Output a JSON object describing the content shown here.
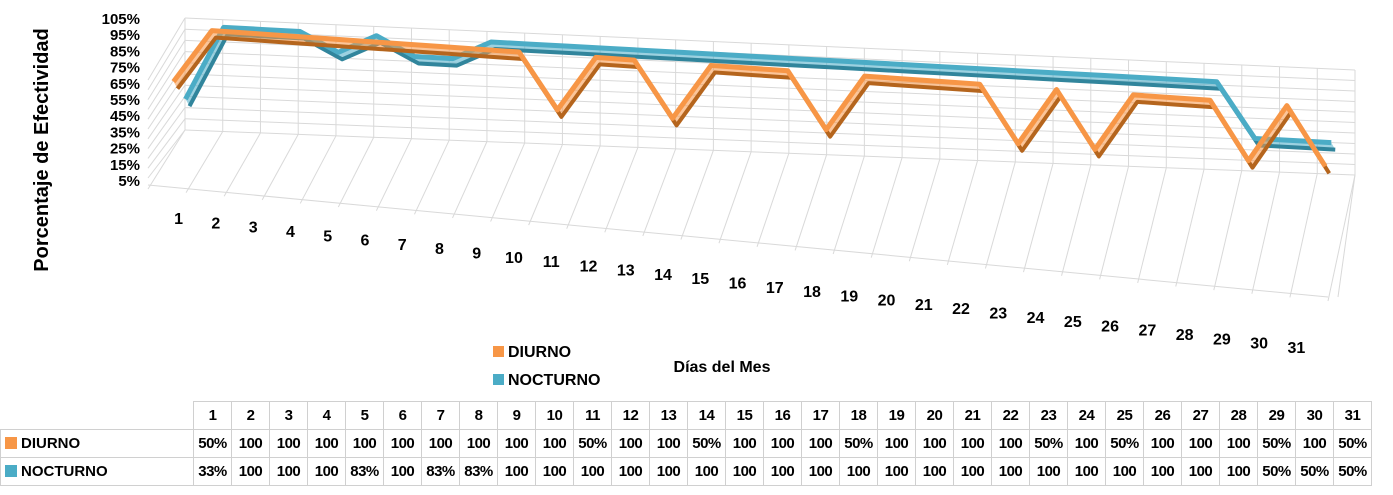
{
  "chart_data": {
    "type": "line",
    "style": "3d",
    "ylabel": "Porcentaje de Efectividad",
    "xlabel": "Días del Mes",
    "y_ticks": [
      "105%",
      "95%",
      "85%",
      "75%",
      "65%",
      "55%",
      "45%",
      "35%",
      "25%",
      "15%",
      "5%"
    ],
    "ylim": [
      5,
      105
    ],
    "categories": [
      "1",
      "2",
      "3",
      "4",
      "5",
      "6",
      "7",
      "8",
      "9",
      "10",
      "11",
      "12",
      "13",
      "14",
      "15",
      "16",
      "17",
      "18",
      "19",
      "20",
      "21",
      "22",
      "23",
      "24",
      "25",
      "26",
      "27",
      "28",
      "29",
      "30",
      "31"
    ],
    "legend_position": "bottom-center",
    "grid": true,
    "series": [
      {
        "name": "DIURNO",
        "color": "#f79646",
        "values": [
          50,
          100,
          100,
          100,
          100,
          100,
          100,
          100,
          100,
          100,
          50,
          100,
          100,
          50,
          100,
          100,
          100,
          50,
          100,
          100,
          100,
          100,
          50,
          100,
          50,
          100,
          100,
          100,
          50,
          100,
          50
        ]
      },
      {
        "name": "NOCTURNO",
        "color": "#4bacc6",
        "values": [
          33,
          100,
          100,
          100,
          83,
          100,
          83,
          83,
          100,
          100,
          100,
          100,
          100,
          100,
          100,
          100,
          100,
          100,
          100,
          100,
          100,
          100,
          100,
          100,
          100,
          100,
          100,
          100,
          50,
          50,
          50
        ]
      }
    ],
    "table": {
      "header": [
        "1",
        "2",
        "3",
        "4",
        "5",
        "6",
        "7",
        "8",
        "9",
        "10",
        "11",
        "12",
        "13",
        "14",
        "15",
        "16",
        "17",
        "18",
        "19",
        "20",
        "21",
        "22",
        "23",
        "24",
        "25",
        "26",
        "27",
        "28",
        "29",
        "30",
        "31"
      ],
      "rows": [
        {
          "label": "DIURNO",
          "color": "#f79646",
          "cells": [
            "50%",
            "100",
            "100",
            "100",
            "100",
            "100",
            "100",
            "100",
            "100",
            "100",
            "50%",
            "100",
            "100",
            "50%",
            "100",
            "100",
            "100",
            "50%",
            "100",
            "100",
            "100",
            "100",
            "50%",
            "100",
            "50%",
            "100",
            "100",
            "100",
            "50%",
            "100",
            "50%"
          ]
        },
        {
          "label": "NOCTURNO",
          "color": "#4bacc6",
          "cells": [
            "33%",
            "100",
            "100",
            "100",
            "83%",
            "100",
            "83%",
            "83%",
            "100",
            "100",
            "100",
            "100",
            "100",
            "100",
            "100",
            "100",
            "100",
            "100",
            "100",
            "100",
            "100",
            "100",
            "100",
            "100",
            "100",
            "100",
            "100",
            "100",
            "50%",
            "50%",
            "50%"
          ]
        }
      ]
    }
  }
}
